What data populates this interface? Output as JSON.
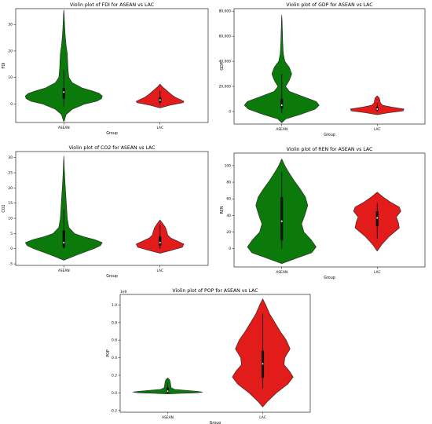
{
  "colors": {
    "asean": "#0b7a0b",
    "lac": "#e21b1b",
    "outline": "#222222",
    "box": "#111111"
  },
  "chart_data": [
    {
      "type": "violin",
      "title": "Violin plot of FDI for ASEAN vs LAC",
      "xlabel": "Group",
      "ylabel": "FDI",
      "categories": [
        "ASEAN",
        "LAC"
      ],
      "ylim": [
        -7,
        36
      ],
      "yticks": [
        0,
        10,
        20,
        30
      ],
      "ytick_labels": [
        "0",
        "10",
        "20",
        "30"
      ],
      "sci_label": "",
      "groups": [
        {
          "name": "ASEAN",
          "q1": 2,
          "median": 4.5,
          "q3": 6,
          "wlo": -1,
          "whi": 13,
          "profile": [
            [
              -6.5,
              0.01
            ],
            [
              -4,
              0.06
            ],
            [
              -2,
              0.22
            ],
            [
              0,
              0.55
            ],
            [
              1,
              0.85
            ],
            [
              2,
              0.98
            ],
            [
              3,
              1.0
            ],
            [
              4,
              0.92
            ],
            [
              5,
              0.72
            ],
            [
              6,
              0.48
            ],
            [
              8,
              0.22
            ],
            [
              10,
              0.13
            ],
            [
              13,
              0.11
            ],
            [
              16,
              0.1
            ],
            [
              19,
              0.09
            ],
            [
              22,
              0.06
            ],
            [
              26,
              0.035
            ],
            [
              30,
              0.02
            ],
            [
              34,
              0.008
            ],
            [
              35.5,
              0.0
            ]
          ]
        },
        {
          "name": "LAC",
          "q1": 0.5,
          "median": 1.5,
          "q3": 2.5,
          "wlo": -0.5,
          "whi": 5,
          "profile": [
            [
              -1.5,
              0.0
            ],
            [
              -0.5,
              0.25
            ],
            [
              0.5,
              0.6
            ],
            [
              1,
              0.62
            ],
            [
              1.5,
              0.55
            ],
            [
              2.5,
              0.4
            ],
            [
              3.5,
              0.3
            ],
            [
              4.5,
              0.22
            ],
            [
              5.5,
              0.14
            ],
            [
              6.5,
              0.06
            ],
            [
              7.5,
              0.0
            ]
          ]
        }
      ]
    },
    {
      "type": "violin",
      "title": "Violin plot of GDP for ASEAN vs LAC",
      "xlabel": "Group",
      "ylabel": "GDP",
      "categories": [
        "ASEAN",
        "LAC"
      ],
      "ylim": [
        -10000,
        82000
      ],
      "yticks": [
        0,
        20000,
        40000,
        60000,
        80000
      ],
      "ytick_labels": [
        "0",
        "20,000",
        "40,000",
        "60,000",
        "80,000"
      ],
      "sci_label": "",
      "groups": [
        {
          "name": "ASEAN",
          "q1": 2500,
          "median": 5000,
          "q3": 10000,
          "wlo": -1000,
          "whi": 30000,
          "profile": [
            [
              -9000,
              0.0
            ],
            [
              -6000,
              0.1
            ],
            [
              -2000,
              0.52
            ],
            [
              2000,
              0.88
            ],
            [
              5000,
              0.98
            ],
            [
              8000,
              0.9
            ],
            [
              12000,
              0.55
            ],
            [
              16000,
              0.2
            ],
            [
              20000,
              0.1
            ],
            [
              25000,
              0.2
            ],
            [
              30000,
              0.26
            ],
            [
              35000,
              0.2
            ],
            [
              40000,
              0.08
            ],
            [
              46000,
              0.04
            ],
            [
              55000,
              0.025
            ],
            [
              65000,
              0.015
            ],
            [
              72000,
              0.008
            ],
            [
              77000,
              0.0
            ]
          ]
        },
        {
          "name": "LAC",
          "q1": 1000,
          "median": 2000,
          "q3": 3500,
          "wlo": 0,
          "whi": 7000,
          "profile": [
            [
              -2500,
              0.0
            ],
            [
              -1000,
              0.3
            ],
            [
              500,
              0.68
            ],
            [
              2000,
              0.7
            ],
            [
              3500,
              0.38
            ],
            [
              5000,
              0.14
            ],
            [
              7000,
              0.08
            ],
            [
              9000,
              0.07
            ],
            [
              11000,
              0.05
            ],
            [
              12500,
              0.0
            ]
          ]
        }
      ]
    },
    {
      "type": "violin",
      "title": "Violin plot of CO2 for ASEAN vs LAC",
      "xlabel": "Group",
      "ylabel": "CO2",
      "categories": [
        "ASEAN",
        "LAC"
      ],
      "ylim": [
        -5.5,
        32
      ],
      "yticks": [
        -5,
        0,
        5,
        10,
        15,
        20,
        25,
        30
      ],
      "ytick_labels": [
        "-5",
        "0",
        "5",
        "10",
        "15",
        "20",
        "25",
        "30"
      ],
      "sci_label": "",
      "groups": [
        {
          "name": "ASEAN",
          "q1": 0.5,
          "median": 2,
          "q3": 6,
          "wlo": 0,
          "whi": 13,
          "profile": [
            [
              -3.8,
              0.0
            ],
            [
              -2,
              0.35
            ],
            [
              0,
              0.78
            ],
            [
              1,
              0.95
            ],
            [
              2,
              1.0
            ],
            [
              3,
              0.8
            ],
            [
              4,
              0.5
            ],
            [
              5,
              0.28
            ],
            [
              7,
              0.13
            ],
            [
              10,
              0.09
            ],
            [
              14,
              0.07
            ],
            [
              18,
              0.05
            ],
            [
              22,
              0.03
            ],
            [
              26,
              0.015
            ],
            [
              29,
              0.006
            ],
            [
              30.5,
              0.0
            ]
          ]
        },
        {
          "name": "LAC",
          "q1": 1,
          "median": 2,
          "q3": 4,
          "wlo": 0,
          "whi": 8,
          "profile": [
            [
              -1.5,
              0.0
            ],
            [
              -0.5,
              0.3
            ],
            [
              0.5,
              0.58
            ],
            [
              1.5,
              0.62
            ],
            [
              2.5,
              0.45
            ],
            [
              3.5,
              0.28
            ],
            [
              4.5,
              0.2
            ],
            [
              5.5,
              0.18
            ],
            [
              7,
              0.14
            ],
            [
              8.5,
              0.06
            ],
            [
              9.5,
              0.0
            ]
          ]
        }
      ]
    },
    {
      "type": "violin",
      "title": "Violin plot of REN for ASEAN vs LAC",
      "xlabel": "Group",
      "ylabel": "REN",
      "categories": [
        "ASEAN",
        "LAC"
      ],
      "ylim": [
        -22,
        115
      ],
      "yticks": [
        0,
        20,
        40,
        60,
        80,
        100
      ],
      "ytick_labels": [
        "0",
        "20",
        "40",
        "60",
        "80",
        "100"
      ],
      "sci_label": "",
      "groups": [
        {
          "name": "ASEAN",
          "q1": 10,
          "median": 33,
          "q3": 62,
          "wlo": 0,
          "whi": 92,
          "profile": [
            [
              -18,
              0.0
            ],
            [
              -12,
              0.35
            ],
            [
              -5,
              0.78
            ],
            [
              2,
              0.9
            ],
            [
              10,
              0.78
            ],
            [
              20,
              0.58
            ],
            [
              30,
              0.52
            ],
            [
              40,
              0.6
            ],
            [
              52,
              0.68
            ],
            [
              62,
              0.62
            ],
            [
              72,
              0.48
            ],
            [
              82,
              0.32
            ],
            [
              92,
              0.18
            ],
            [
              100,
              0.08
            ],
            [
              106,
              0.02
            ],
            [
              108,
              0.0
            ]
          ]
        },
        {
          "name": "LAC",
          "q1": 27,
          "median": 37,
          "q3": 45,
          "wlo": 12,
          "whi": 55,
          "profile": [
            [
              -3,
              0.0
            ],
            [
              5,
              0.12
            ],
            [
              15,
              0.32
            ],
            [
              25,
              0.58
            ],
            [
              32,
              0.55
            ],
            [
              38,
              0.5
            ],
            [
              45,
              0.62
            ],
            [
              50,
              0.58
            ],
            [
              56,
              0.35
            ],
            [
              62,
              0.16
            ],
            [
              68,
              0.0
            ]
          ]
        }
      ]
    },
    {
      "type": "violin",
      "title": "Violin plot of POP for ASEAN vs LAC",
      "xlabel": "Group",
      "ylabel": "POP",
      "categories": [
        "ASEAN",
        "LAC"
      ],
      "ylim": [
        -0.22,
        1.12
      ],
      "yticks": [
        -0.2,
        0.0,
        0.2,
        0.4,
        0.6,
        0.8,
        1.0
      ],
      "ytick_labels": [
        "-0.2",
        "0.0",
        "0.2",
        "0.4",
        "0.6",
        "0.8",
        "1.0"
      ],
      "sci_label": "1e9",
      "groups": [
        {
          "name": "ASEAN",
          "q1": 0.005,
          "median": 0.02,
          "q3": 0.06,
          "wlo": 0.0,
          "whi": 0.12,
          "profile": [
            [
              -0.012,
              0.0
            ],
            [
              -0.005,
              0.35
            ],
            [
              0.0,
              0.78
            ],
            [
              0.01,
              0.92
            ],
            [
              0.02,
              0.72
            ],
            [
              0.04,
              0.18
            ],
            [
              0.06,
              0.09
            ],
            [
              0.09,
              0.08
            ],
            [
              0.12,
              0.07
            ],
            [
              0.15,
              0.05
            ],
            [
              0.17,
              0.0
            ]
          ]
        },
        {
          "name": "LAC",
          "q1": 0.17,
          "median": 0.33,
          "q3": 0.48,
          "wlo": 0.05,
          "whi": 0.9,
          "profile": [
            [
              -0.16,
              0.0
            ],
            [
              -0.1,
              0.12
            ],
            [
              0.0,
              0.36
            ],
            [
              0.1,
              0.66
            ],
            [
              0.18,
              0.8
            ],
            [
              0.25,
              0.7
            ],
            [
              0.32,
              0.56
            ],
            [
              0.4,
              0.58
            ],
            [
              0.5,
              0.72
            ],
            [
              0.6,
              0.62
            ],
            [
              0.7,
              0.46
            ],
            [
              0.8,
              0.32
            ],
            [
              0.9,
              0.18
            ],
            [
              1.0,
              0.08
            ],
            [
              1.07,
              0.0
            ]
          ]
        }
      ]
    }
  ]
}
